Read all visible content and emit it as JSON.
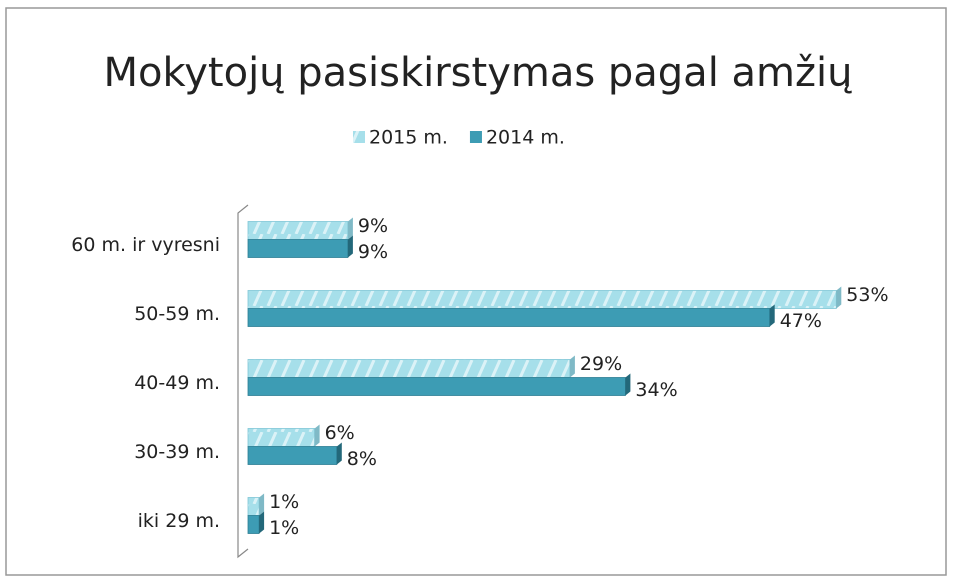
{
  "chart_data": {
    "type": "hbar",
    "title": "Mokytojų pasiskirstymas pagal amžių",
    "categories": [
      "60 m. ir vyresni",
      "50-59 m.",
      "40-49 m.",
      "30-39 m.",
      "iki 29 m."
    ],
    "series": [
      {
        "name": "2015 m.",
        "color": "#a6dfea",
        "values": [
          9,
          53,
          29,
          6,
          1
        ],
        "value_labels": [
          "9%",
          "53%",
          "29%",
          "6%",
          "1%"
        ]
      },
      {
        "name": "2014 m.",
        "color": "#3d9cb4",
        "values": [
          9,
          47,
          34,
          8,
          1
        ],
        "value_labels": [
          "9%",
          "47%",
          "34%",
          "8%",
          "1%"
        ]
      }
    ],
    "xlim": [
      0,
      60
    ]
  }
}
